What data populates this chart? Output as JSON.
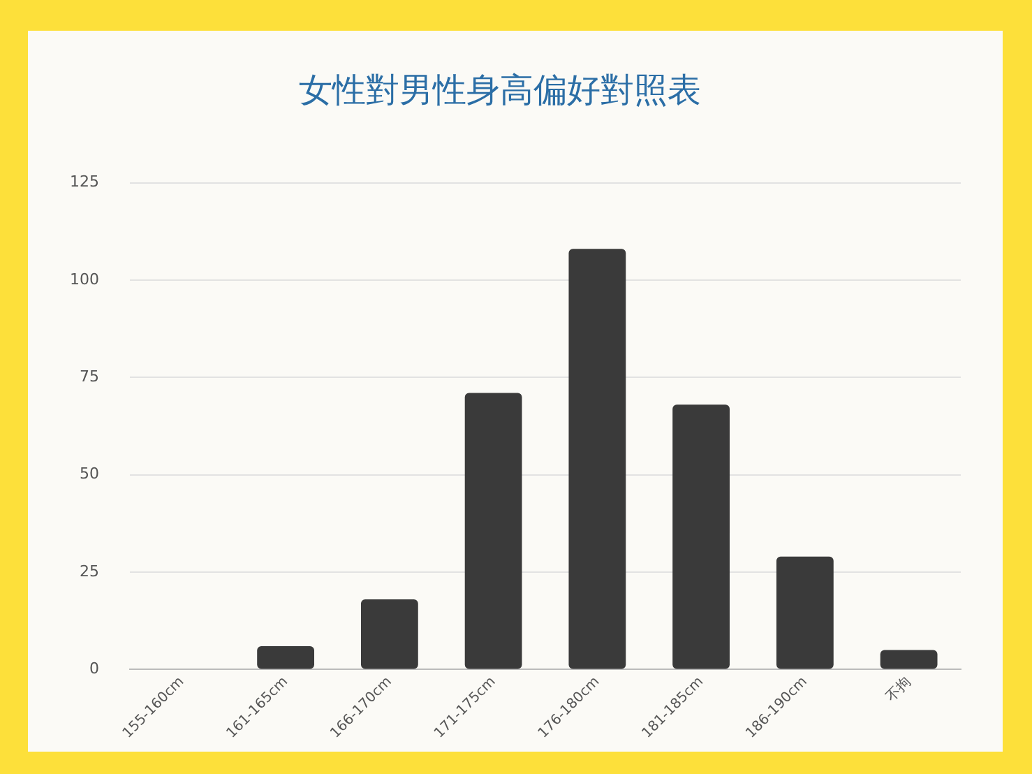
{
  "chart_data": {
    "type": "bar",
    "title": "女性對男性身高偏好對照表",
    "categories": [
      "155-160cm",
      "161-165cm",
      "166-170cm",
      "171-175cm",
      "176-180cm",
      "181-185cm",
      "186-190cm",
      "不拘"
    ],
    "values": [
      0,
      6,
      18,
      71,
      108,
      68,
      29,
      5
    ],
    "color": "#3a3a3a",
    "ylim": [
      0,
      125
    ],
    "yticks": [
      0,
      25,
      50,
      75,
      100,
      125
    ],
    "grid": "y",
    "legend": false
  }
}
